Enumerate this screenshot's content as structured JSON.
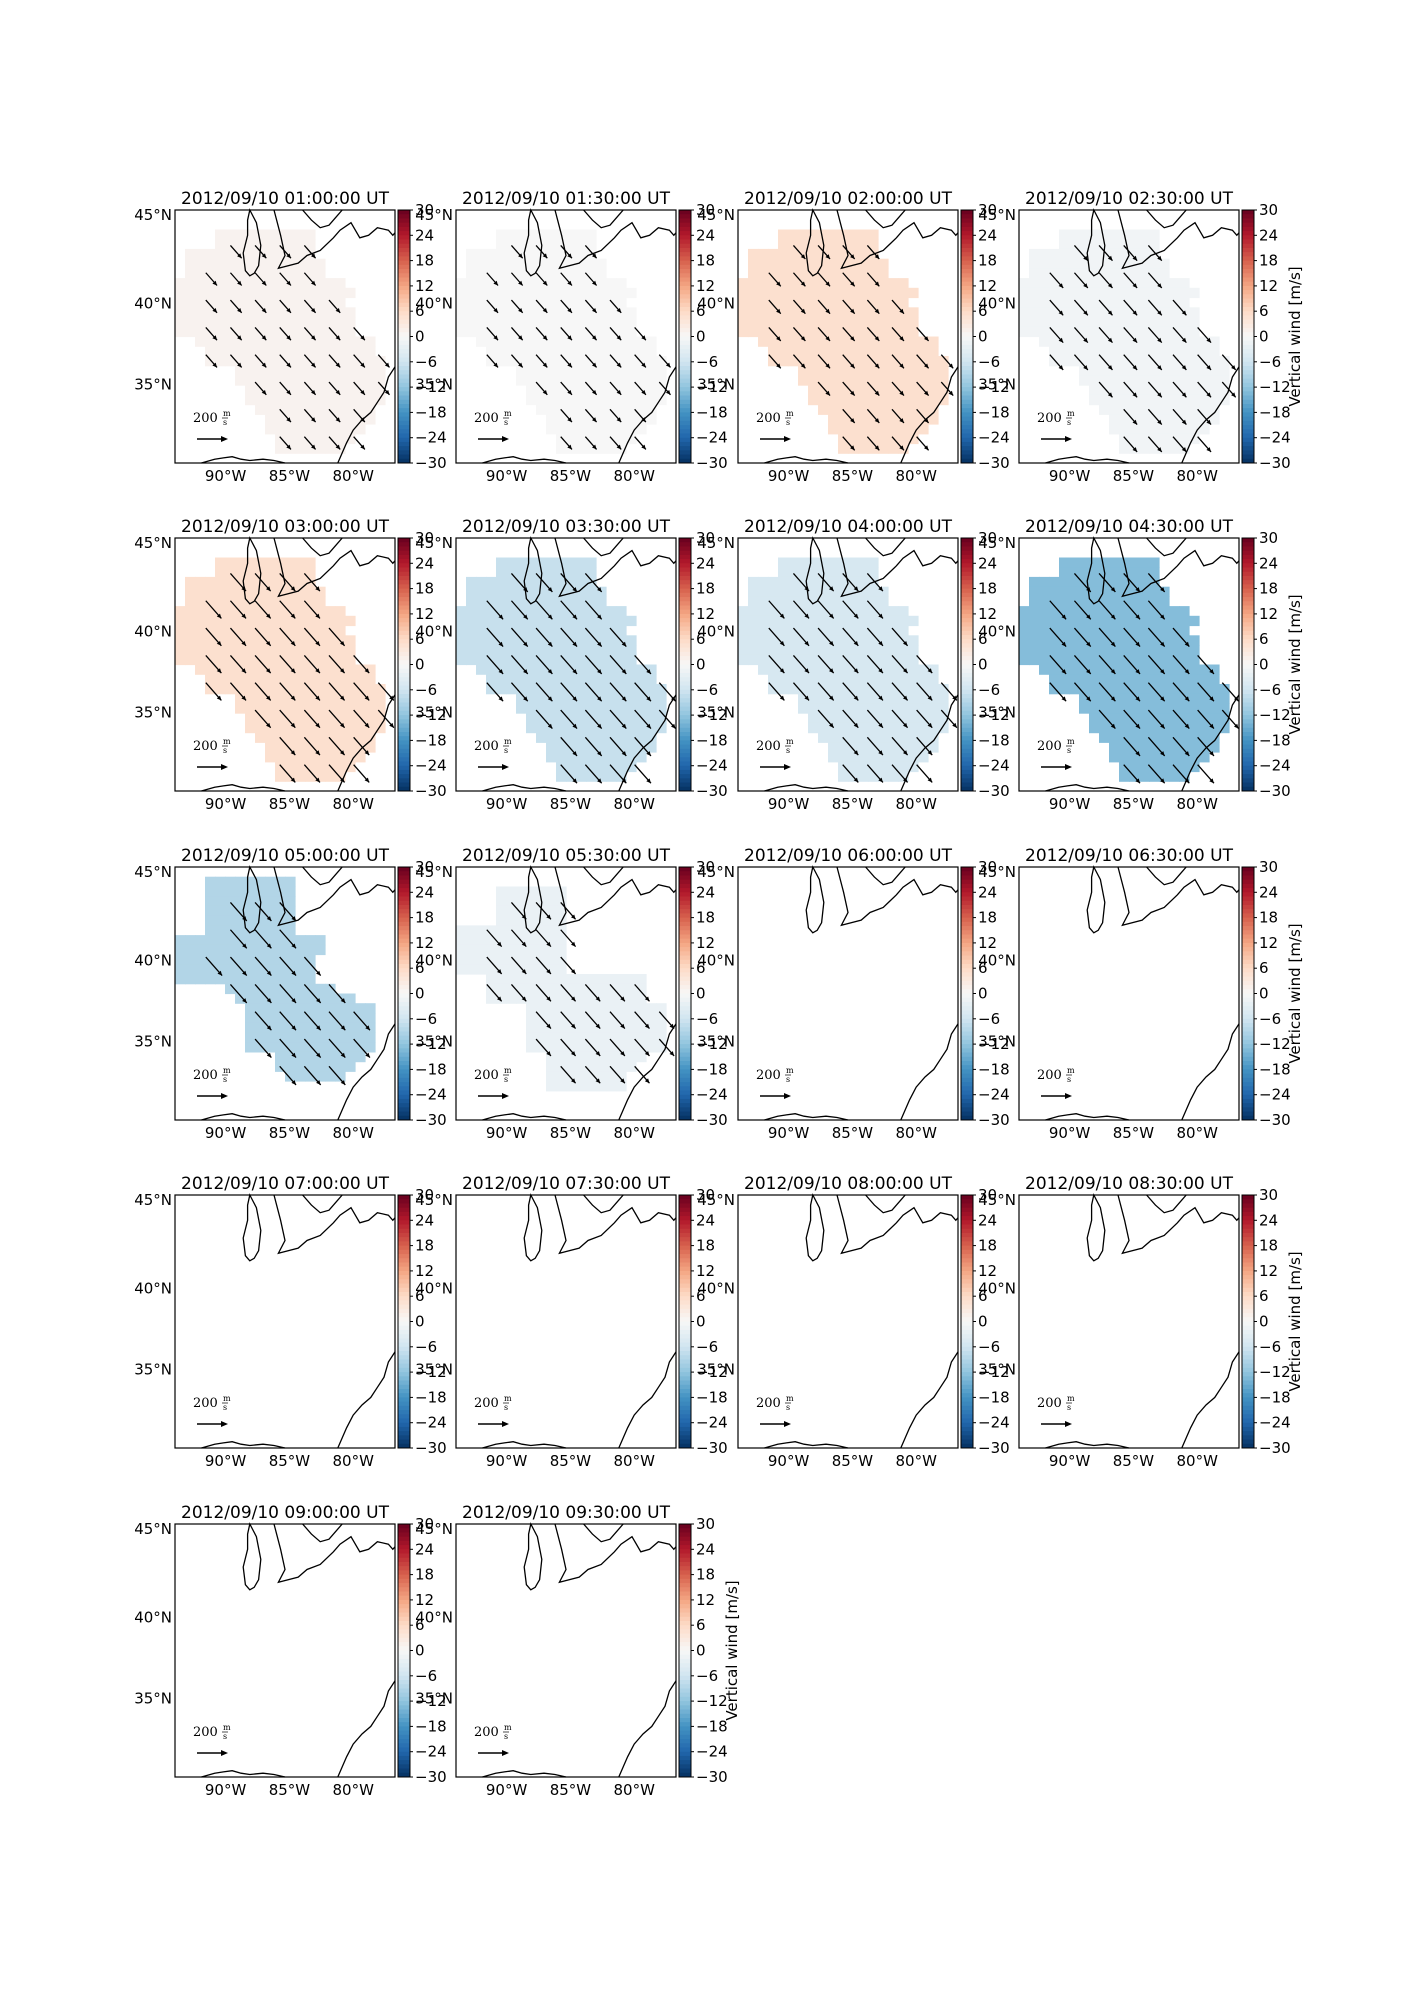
{
  "figure": {
    "colors": {
      "neg_strong": "#2166ac",
      "neg_mid": "#67a9cf",
      "neutral": "#f7f7f7",
      "pos_mid": "#ef8a62",
      "pos_strong": "#b2182b",
      "cmap": [
        "#053061",
        "#2166ac",
        "#4393c3",
        "#92c5de",
        "#d1e5f0",
        "#f7f7f7",
        "#fddbc7",
        "#f4a582",
        "#d6604d",
        "#b2182b",
        "#67001f"
      ],
      "land_outline": "#000000",
      "arrow": "#000000"
    },
    "icons": {
      "quiver_key": "arrow-right-icon"
    }
  },
  "chart_data": {
    "type": "heatmap",
    "map_axes": {
      "xticks": [
        "90°W",
        "85°W",
        "80°W"
      ],
      "yticks": [
        "45°N",
        "40°N",
        "35°N"
      ],
      "extent_lon": [
        -94,
        -77
      ],
      "extent_lat": [
        30.5,
        45.5
      ]
    },
    "colorbar": {
      "label": "Vertical wind [m/s]",
      "ticks": [
        "30",
        "24",
        "18",
        "12",
        "6",
        "0",
        "−6",
        "−12",
        "−18",
        "−24",
        "−30"
      ],
      "range": [
        -30,
        30
      ]
    },
    "quiver_key": {
      "value": 200,
      "text": "200",
      "unit_num": "m",
      "unit_den": "s"
    },
    "panels": [
      {
        "title": "2012/09/10 01:00:00 UT",
        "w": 1,
        "region": "A",
        "arrows": true,
        "arrow_scale": 0.5
      },
      {
        "title": "2012/09/10 01:30:00 UT",
        "w": 0,
        "region": "A",
        "arrows": true,
        "arrow_scale": 0.5
      },
      {
        "title": "2012/09/10 02:00:00 UT",
        "w": 5,
        "region": "A",
        "arrows": true,
        "arrow_scale": 0.55
      },
      {
        "title": "2012/09/10 02:30:00 UT",
        "w": -1,
        "region": "A",
        "arrows": true,
        "arrow_scale": 0.65
      },
      {
        "title": "2012/09/10 03:00:00 UT",
        "w": 5,
        "region": "A",
        "arrows": true,
        "arrow_scale": 0.8
      },
      {
        "title": "2012/09/10 03:30:00 UT",
        "w": -7,
        "region": "A",
        "arrows": true,
        "arrow_scale": 0.85
      },
      {
        "title": "2012/09/10 04:00:00 UT",
        "w": -5,
        "region": "A",
        "arrows": true,
        "arrow_scale": 0.8
      },
      {
        "title": "2012/09/10 04:30:00 UT",
        "w": -13,
        "region": "A",
        "arrows": true,
        "arrow_scale": 0.85
      },
      {
        "title": "2012/09/10 05:00:00 UT",
        "w": -9,
        "region": "B",
        "arrows": true,
        "arrow_scale": 0.85
      },
      {
        "title": "2012/09/10 05:30:00 UT",
        "w": -2,
        "region": "C",
        "arrows": true,
        "arrow_scale": 0.75
      },
      {
        "title": "2012/09/10 06:00:00 UT",
        "w": null,
        "region": "none",
        "arrows": false,
        "arrow_scale": 0
      },
      {
        "title": "2012/09/10 06:30:00 UT",
        "w": null,
        "region": "none",
        "arrows": false,
        "arrow_scale": 0
      },
      {
        "title": "2012/09/10 07:00:00 UT",
        "w": null,
        "region": "none",
        "arrows": false,
        "arrow_scale": 0
      },
      {
        "title": "2012/09/10 07:30:00 UT",
        "w": null,
        "region": "none",
        "arrows": false,
        "arrow_scale": 0
      },
      {
        "title": "2012/09/10 08:00:00 UT",
        "w": null,
        "region": "none",
        "arrows": false,
        "arrow_scale": 0
      },
      {
        "title": "2012/09/10 08:30:00 UT",
        "w": null,
        "region": "none",
        "arrows": false,
        "arrow_scale": 0
      },
      {
        "title": "2012/09/10 09:00:00 UT",
        "w": null,
        "region": "none",
        "arrows": false,
        "arrow_scale": 0
      },
      {
        "title": "2012/09/10 09:30:00 UT",
        "w": null,
        "region": "none",
        "arrows": false,
        "arrow_scale": 0
      }
    ]
  }
}
